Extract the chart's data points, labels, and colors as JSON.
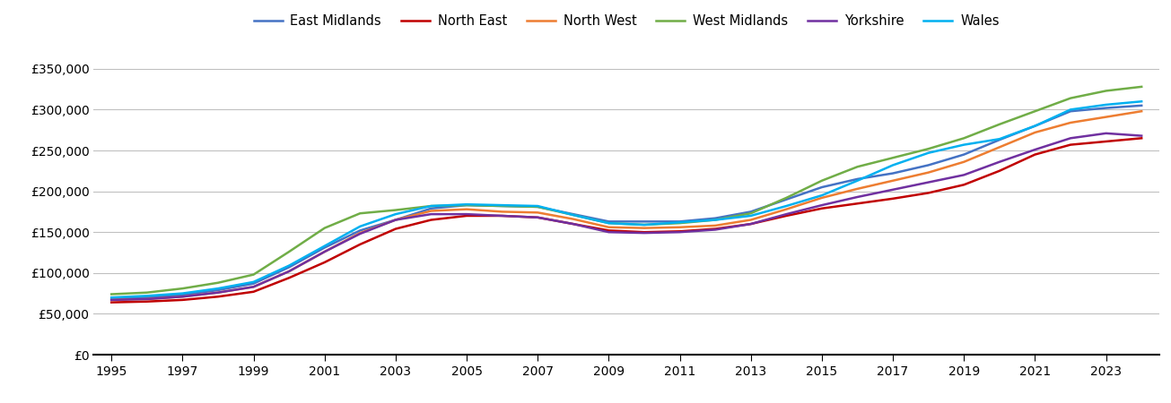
{
  "series": {
    "East Midlands": {
      "color": "#4472C4",
      "values": [
        68000,
        70000,
        73000,
        79000,
        87000,
        107000,
        131000,
        152000,
        165000,
        179000,
        183000,
        182000,
        181000,
        172000,
        163000,
        163000,
        163000,
        167000,
        175000,
        190000,
        205000,
        215000,
        222000,
        232000,
        245000,
        263000,
        280000,
        298000,
        302000,
        305000
      ]
    },
    "North East": {
      "color": "#C00000",
      "values": [
        64000,
        65000,
        67000,
        71000,
        77000,
        94000,
        113000,
        135000,
        154000,
        165000,
        170000,
        170000,
        168000,
        160000,
        152000,
        150000,
        151000,
        154000,
        160000,
        170000,
        179000,
        185000,
        191000,
        198000,
        208000,
        225000,
        245000,
        257000,
        261000,
        265000
      ]
    },
    "North West": {
      "color": "#ED7D31",
      "values": [
        67000,
        68000,
        71000,
        76000,
        83000,
        102000,
        126000,
        149000,
        165000,
        176000,
        178000,
        175000,
        174000,
        166000,
        156000,
        155000,
        156000,
        158000,
        165000,
        178000,
        192000,
        203000,
        213000,
        223000,
        236000,
        254000,
        272000,
        284000,
        291000,
        298000
      ]
    },
    "West Midlands": {
      "color": "#70AD47",
      "values": [
        74000,
        76000,
        81000,
        88000,
        98000,
        126000,
        155000,
        173000,
        177000,
        182000,
        183000,
        182000,
        181000,
        171000,
        161000,
        159000,
        161000,
        165000,
        173000,
        192000,
        213000,
        230000,
        241000,
        252000,
        265000,
        282000,
        298000,
        314000,
        323000,
        328000
      ]
    },
    "Yorkshire": {
      "color": "#7030A0",
      "values": [
        67000,
        68000,
        71000,
        76000,
        83000,
        102000,
        126000,
        148000,
        165000,
        172000,
        172000,
        170000,
        168000,
        160000,
        150000,
        149000,
        150000,
        153000,
        160000,
        172000,
        183000,
        193000,
        202000,
        211000,
        220000,
        236000,
        251000,
        265000,
        271000,
        268000
      ]
    },
    "Wales": {
      "color": "#00B0F0",
      "values": [
        70000,
        72000,
        75000,
        81000,
        89000,
        109000,
        133000,
        157000,
        172000,
        182000,
        184000,
        183000,
        182000,
        171000,
        161000,
        159000,
        162000,
        165000,
        170000,
        182000,
        195000,
        213000,
        232000,
        247000,
        257000,
        264000,
        280000,
        300000,
        306000,
        310000
      ]
    }
  },
  "years": [
    1995,
    1996,
    1997,
    1998,
    1999,
    2000,
    2001,
    2002,
    2003,
    2004,
    2005,
    2006,
    2007,
    2008,
    2009,
    2010,
    2011,
    2012,
    2013,
    2014,
    2015,
    2016,
    2017,
    2018,
    2019,
    2020,
    2021,
    2022,
    2023,
    2024
  ],
  "yticks": [
    0,
    50000,
    100000,
    150000,
    200000,
    250000,
    300000,
    350000
  ],
  "ylim": [
    0,
    375000
  ],
  "xlim": [
    1994.5,
    2024.5
  ],
  "xticks": [
    1995,
    1997,
    1999,
    2001,
    2003,
    2005,
    2007,
    2009,
    2011,
    2013,
    2015,
    2017,
    2019,
    2021,
    2023
  ],
  "background_color": "#ffffff",
  "grid_color": "#c0c0c0",
  "line_width": 1.8
}
